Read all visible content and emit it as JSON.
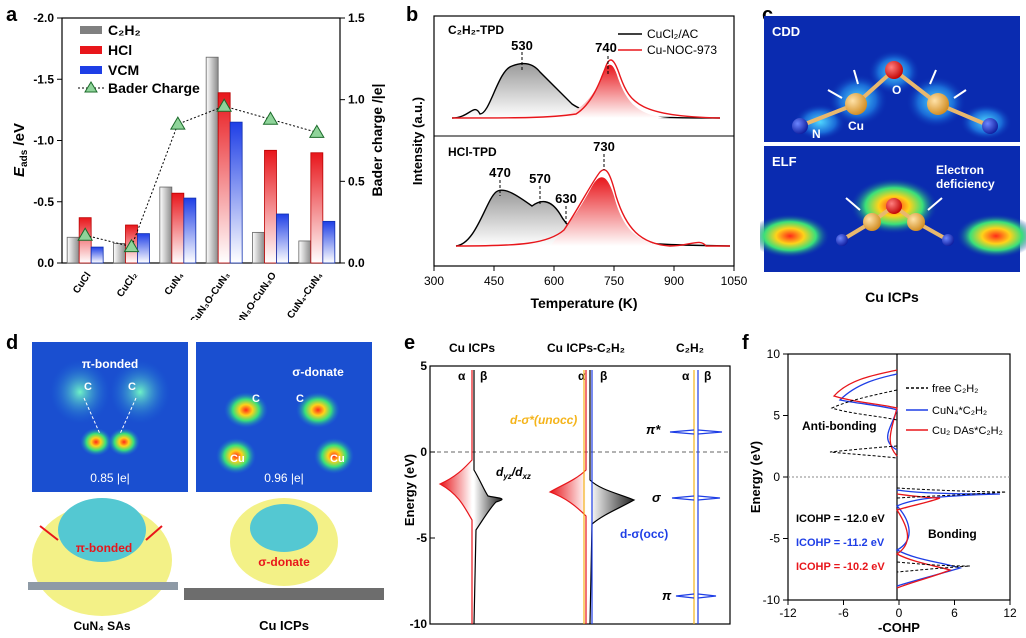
{
  "panels": {
    "a": "a",
    "b": "b",
    "c": "c",
    "d": "d",
    "e": "e",
    "f": "f"
  },
  "a": {
    "chart_data": {
      "type": "bar",
      "categories": [
        "CuCl",
        "CuCl2",
        "CuN4",
        "CuN3O-CuN3",
        "CuN3O-CuN3O",
        "CuN4-CuN4"
      ],
      "category_labels": [
        "CuCl",
        "CuCl₂",
        "CuN₄",
        "CuN₃O-CuN₃",
        "CuN₃O-CuN₃O",
        "CuN₄-CuN₄"
      ],
      "series": [
        {
          "name": "C₂H₂",
          "color": "#808080",
          "values": [
            -0.21,
            -0.16,
            -0.62,
            -1.68,
            -0.25,
            -0.18
          ]
        },
        {
          "name": "HCl",
          "color": "#e8161b",
          "values": [
            -0.37,
            -0.31,
            -0.57,
            -1.39,
            -0.92,
            -0.9
          ]
        },
        {
          "name": "VCM",
          "color": "#1e3ee6",
          "values": [
            -0.13,
            -0.24,
            -0.53,
            -1.15,
            -0.4,
            -0.34
          ]
        }
      ],
      "bader": {
        "name": "Bader Charge",
        "values": [
          0.17,
          0.1,
          0.85,
          0.96,
          0.88,
          0.8
        ]
      },
      "ylabel": "E_ads /eV",
      "ylabel_main": "E",
      "ylabel_sub": "ads",
      "ylabel_unit": " /eV",
      "y2label": "Bader charge /|e|",
      "yticks": [
        "-2.0",
        "-1.5",
        "-1.0",
        "-0.5",
        "0.0"
      ],
      "y2ticks": [
        "0.0",
        "0.5",
        "1.0",
        "1.5"
      ],
      "ylim": [
        0,
        -2.0
      ],
      "y2lim": [
        0,
        1.5
      ]
    }
  },
  "b": {
    "chart_data": {
      "type": "line",
      "title_top": "C₂H₂-TPD",
      "title_bottom": "HCl-TPD",
      "xlabel": "Temperature (K)",
      "ylabel": "Intensity (a.u.)",
      "xticks": [
        "300",
        "450",
        "600",
        "750",
        "900",
        "1050"
      ],
      "xlim": [
        300,
        1050
      ],
      "legend": [
        "CuCl₂/AC",
        "Cu-NOC-973"
      ],
      "peaks_top": [
        "530",
        "740"
      ],
      "peaks_bottom": [
        "470",
        "570",
        "630",
        "730"
      ]
    }
  },
  "c": {
    "cdd_label": "CDD",
    "elf_label": "ELF",
    "atom_labels": [
      "N",
      "Cu",
      "O"
    ],
    "note": "Electron deficiency",
    "caption": "Cu ICPs"
  },
  "d": {
    "left_label": "π-bonded",
    "right_label": "σ-donate",
    "left_charge": "0.85 |e|",
    "right_charge": "0.96 |e|",
    "c_label": "C",
    "cu_label": "Cu",
    "caption_left": "CuN₄ SAs",
    "caption_right": "Cu ICPs"
  },
  "e": {
    "chart_data": {
      "type": "line",
      "columns": [
        "Cu ICPs",
        "Cu ICPs-C₂H₂",
        "C₂H₂"
      ],
      "spin": [
        "α",
        "β"
      ],
      "ylabel": "Energy (eV)",
      "yticks": [
        "5",
        "0",
        "-5",
        "-10"
      ],
      "ylim": [
        -10,
        5
      ],
      "annotations": [
        "d-σ*(unocc)",
        "dyz/dxz",
        "d-σ(occ)",
        "π*",
        "σ",
        "π"
      ]
    }
  },
  "f": {
    "chart_data": {
      "type": "line",
      "xlabel": "-COHP",
      "ylabel": "Energy (eV)",
      "xticks": [
        "-12",
        "-6",
        "0",
        "6",
        "12"
      ],
      "yticks": [
        "10",
        "5",
        "0",
        "-5",
        "-10"
      ],
      "xlim": [
        -12,
        12
      ],
      "ylim": [
        -10,
        10
      ],
      "legend": [
        "free C₂H₂",
        "CuN₄*C₂H₂",
        "Cu₂ DAs*C₂H₂"
      ],
      "region_labels": [
        "Anti-bonding",
        "Bonding"
      ],
      "icohp": [
        {
          "text": "ICOHP = -12.0 eV",
          "color": "#000000"
        },
        {
          "text": "ICOHP = -11.2 eV",
          "color": "#1e3ee6"
        },
        {
          "text": "ICOHP = -10.2 eV",
          "color": "#e8161b"
        }
      ]
    }
  }
}
